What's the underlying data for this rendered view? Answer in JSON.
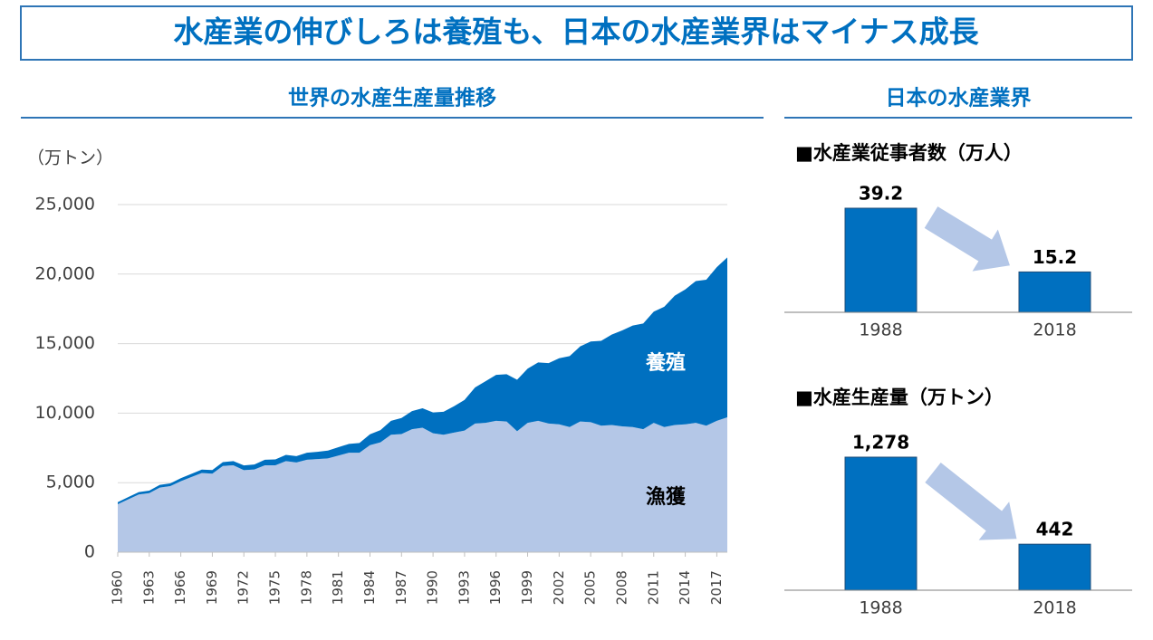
{
  "header": {
    "title": "水産業の伸びしろは養殖も、日本の水産業界はマイナス成長",
    "sections": [
      "世界の水産生産量推移",
      "日本の水産業界"
    ]
  },
  "chart_data": [
    {
      "type": "area",
      "stacked": true,
      "y_unit": "（万トン）",
      "x": [
        1960,
        1961,
        1962,
        1963,
        1964,
        1965,
        1966,
        1967,
        1968,
        1969,
        1970,
        1971,
        1972,
        1973,
        1974,
        1975,
        1976,
        1977,
        1978,
        1979,
        1980,
        1981,
        1982,
        1983,
        1984,
        1985,
        1986,
        1987,
        1988,
        1989,
        1990,
        1991,
        1992,
        1993,
        1994,
        1995,
        1996,
        1997,
        1998,
        1999,
        2000,
        2001,
        2002,
        2003,
        2004,
        2005,
        2006,
        2007,
        2008,
        2009,
        2010,
        2011,
        2012,
        2013,
        2014,
        2015,
        2016,
        2017,
        2018
      ],
      "xlim": [
        1960,
        2018
      ],
      "xticks": [
        1960,
        1963,
        1966,
        1969,
        1972,
        1975,
        1978,
        1981,
        1984,
        1987,
        1990,
        1993,
        1996,
        1999,
        2002,
        2005,
        2008,
        2011,
        2014,
        2017
      ],
      "ylim": [
        0,
        25000
      ],
      "yticks": [
        0,
        {
          "value": 5000,
          "label": "5,000"
        },
        {
          "value": 10000,
          "label": "10,000"
        },
        {
          "value": 15000,
          "label": "15,000"
        },
        {
          "value": 20000,
          "label": "20,000"
        },
        {
          "value": 25000,
          "label": "25,000"
        }
      ],
      "grid": true,
      "series": [
        {
          "name": "漁獲",
          "color": "#b4c7e7",
          "values": [
            3450,
            3800,
            4150,
            4250,
            4650,
            4750,
            5100,
            5400,
            5700,
            5650,
            6200,
            6250,
            5900,
            5950,
            6250,
            6250,
            6550,
            6450,
            6650,
            6700,
            6750,
            6950,
            7150,
            7150,
            7700,
            7900,
            8450,
            8500,
            8850,
            8950,
            8550,
            8450,
            8600,
            8750,
            9250,
            9300,
            9450,
            9400,
            8700,
            9300,
            9450,
            9250,
            9200,
            9000,
            9400,
            9350,
            9100,
            9150,
            9050,
            9000,
            8850,
            9300,
            9000,
            9150,
            9200,
            9300,
            9100,
            9450,
            9700
          ]
        },
        {
          "name": "養殖",
          "color": "#0070c0",
          "values": [
            150,
            160,
            170,
            180,
            190,
            200,
            220,
            230,
            240,
            260,
            280,
            300,
            340,
            360,
            400,
            420,
            450,
            460,
            500,
            520,
            560,
            600,
            640,
            700,
            780,
            880,
            1000,
            1150,
            1300,
            1400,
            1500,
            1650,
            1900,
            2200,
            2600,
            3000,
            3300,
            3400,
            3700,
            3900,
            4200,
            4350,
            4750,
            5100,
            5400,
            5800,
            6100,
            6500,
            6900,
            7300,
            7600,
            8000,
            8650,
            9300,
            9700,
            10200,
            10500,
            11050,
            11500
          ]
        }
      ]
    },
    {
      "type": "bar",
      "title": "■水産業従事者数（万人）",
      "categories": [
        "1988",
        "2018"
      ],
      "values": [
        39.2,
        15.2
      ],
      "color": "#0070c0"
    },
    {
      "type": "bar",
      "title": "■水産生産量（万トン）",
      "categories": [
        "1988",
        "2018"
      ],
      "values": [
        1278,
        442
      ],
      "value_labels": [
        "1,278",
        "442"
      ],
      "color": "#0070c0"
    }
  ]
}
